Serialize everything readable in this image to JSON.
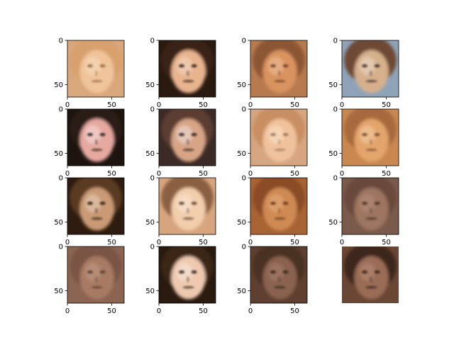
{
  "figure": {
    "grid_rows": 4,
    "grid_cols": 4,
    "image_extent": [
      0,
      64
    ],
    "tick_labels": {
      "x": [
        "0",
        "50"
      ],
      "y": [
        "0",
        "50"
      ]
    },
    "panels": [
      {
        "name": "face-r1c1",
        "x_ticks_visible": true,
        "y_ticks_visible": true,
        "palette": {
          "bg": "#d9a77c",
          "skin": "#f0c49a",
          "hair": "#d8a06d",
          "dark": "#8a5b3a",
          "light": "#f6dcc0"
        }
      },
      {
        "name": "face-r1c2",
        "x_ticks_visible": true,
        "y_ticks_visible": true,
        "palette": {
          "bg": "#2b1a10",
          "skin": "#e8b48e",
          "hair": "#3a2416",
          "dark": "#1c110a",
          "light": "#f3d9c4"
        }
      },
      {
        "name": "face-r1c3",
        "x_ticks_visible": true,
        "y_ticks_visible": true,
        "palette": {
          "bg": "#b77a4f",
          "skin": "#d9935f",
          "hair": "#8c5634",
          "dark": "#5d3420",
          "light": "#efc39b"
        }
      },
      {
        "name": "face-r1c4",
        "x_ticks_visible": true,
        "y_ticks_visible": true,
        "palette": {
          "bg": "#8fa3b8",
          "skin": "#d6b08c",
          "hair": "#6e4a35",
          "dark": "#2d2226",
          "light": "#eedcc8"
        }
      },
      {
        "name": "face-r2c1",
        "x_ticks_visible": true,
        "y_ticks_visible": true,
        "palette": {
          "bg": "#1d1410",
          "skin": "#e6a9a0",
          "hair": "#2a1c16",
          "dark": "#120c0a",
          "light": "#f4e0e0"
        }
      },
      {
        "name": "face-r2c2",
        "x_ticks_visible": true,
        "y_ticks_visible": true,
        "palette": {
          "bg": "#3b2a26",
          "skin": "#d8a486",
          "hair": "#5b3d33",
          "dark": "#1a1214",
          "light": "#efe2e0"
        }
      },
      {
        "name": "face-r2c3",
        "x_ticks_visible": true,
        "y_ticks_visible": true,
        "palette": {
          "bg": "#d6a682",
          "skin": "#f0c29c",
          "hair": "#c98e62",
          "dark": "#8e6a54",
          "light": "#fae3cb"
        }
      },
      {
        "name": "face-r2c4",
        "x_ticks_visible": true,
        "y_ticks_visible": true,
        "palette": {
          "bg": "#c9884f",
          "skin": "#e3a56c",
          "hair": "#a86a3c",
          "dark": "#6a4126",
          "light": "#f3cfa7"
        }
      },
      {
        "name": "face-r3c1",
        "x_ticks_visible": true,
        "y_ticks_visible": true,
        "palette": {
          "bg": "#2e1c10",
          "skin": "#c99a74",
          "hair": "#5a3b22",
          "dark": "#1a0f08",
          "light": "#e9d2bd"
        }
      },
      {
        "name": "face-r3c2",
        "x_ticks_visible": true,
        "y_ticks_visible": true,
        "palette": {
          "bg": "#d7a57d",
          "skin": "#f2ceac",
          "hair": "#8b6043",
          "dark": "#4b3426",
          "light": "#f9e8d8"
        }
      },
      {
        "name": "face-r3c3",
        "x_ticks_visible": true,
        "y_ticks_visible": true,
        "palette": {
          "bg": "#a86335",
          "skin": "#cf8a52",
          "hair": "#8a4c28",
          "dark": "#5a3018",
          "light": "#e6ad7c"
        }
      },
      {
        "name": "face-r3c4",
        "x_ticks_visible": true,
        "y_ticks_visible": true,
        "palette": {
          "bg": "#7a5a4a",
          "skin": "#9d7460",
          "hair": "#6a4a3c",
          "dark": "#3e2a22",
          "light": "#b48e78"
        }
      },
      {
        "name": "face-r4c1",
        "x_ticks_visible": true,
        "y_ticks_visible": true,
        "palette": {
          "bg": "#8c6452",
          "skin": "#a77a63",
          "hair": "#7a5444",
          "dark": "#4e342a",
          "light": "#c39a84"
        }
      },
      {
        "name": "face-r4c2",
        "x_ticks_visible": true,
        "y_ticks_visible": true,
        "palette": {
          "bg": "#2a1a10",
          "skin": "#eec9b0",
          "hair": "#3a2616",
          "dark": "#1a100a",
          "light": "#f8e6da"
        }
      },
      {
        "name": "face-r4c3",
        "x_ticks_visible": true,
        "y_ticks_visible": true,
        "palette": {
          "bg": "#5e3f30",
          "skin": "#8a6250",
          "hair": "#4a3024",
          "dark": "#2a1a14",
          "light": "#a8806c"
        }
      },
      {
        "name": "face-r4c4",
        "x_ticks_visible": false,
        "y_ticks_visible": false,
        "palette": {
          "bg": "#6a4634",
          "skin": "#9a6c56",
          "hair": "#3e261c",
          "dark": "#2a1810",
          "light": "#b88c76"
        }
      }
    ]
  }
}
